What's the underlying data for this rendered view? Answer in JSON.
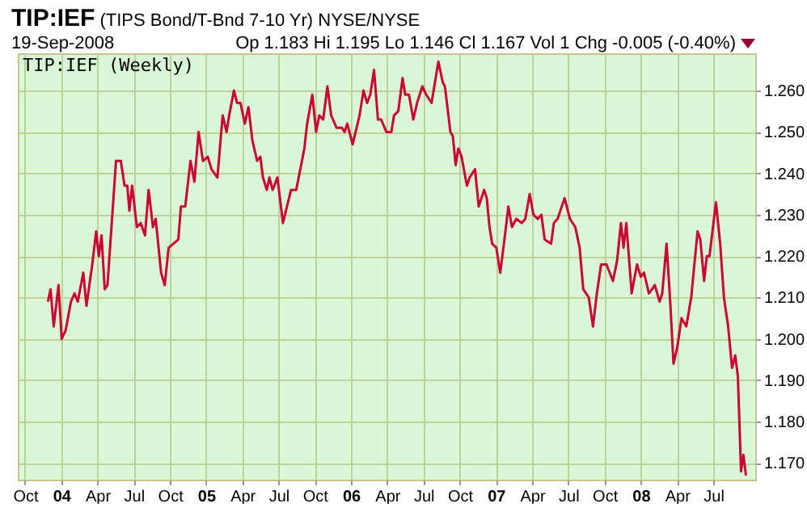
{
  "chart_data": {
    "type": "line",
    "title": "TIP:IEF (TIPS Bond/T-Bnd 7-10 Yr) NYSE/NYSE",
    "annotations": [
      "19-Sep-2008",
      "Op 1.183 Hi 1.195 Lo 1.146 Cl 1.167 Vol 1 Chg -0.005 (-0.40%)",
      "TIP:IEF (Weekly)"
    ],
    "x": [
      2003.908,
      2003.926,
      2003.948,
      2003.981,
      2004.003,
      2004.03,
      2004.067,
      2004.092,
      2004.114,
      2004.152,
      2004.174,
      2004.214,
      2004.241,
      2004.259,
      2004.278,
      2004.3,
      2004.319,
      2004.378,
      2004.411,
      2004.437,
      2004.456,
      2004.47,
      2004.489,
      2004.522,
      2004.548,
      2004.578,
      2004.603,
      2004.633,
      2004.652,
      2004.689,
      2004.714,
      2004.741,
      2004.808,
      2004.826,
      2004.856,
      2004.892,
      2004.919,
      2004.948,
      2004.978,
      2005.011,
      2005.037,
      2005.078,
      2005.114,
      2005.141,
      2005.159,
      2005.192,
      2005.214,
      2005.237,
      2005.267,
      2005.292,
      2005.319,
      2005.352,
      2005.374,
      2005.392,
      2005.419,
      2005.437,
      2005.459,
      2005.492,
      2005.53,
      2005.586,
      2005.622,
      2005.678,
      2005.697,
      2005.733,
      2005.759,
      2005.781,
      2005.808,
      2005.837,
      2005.863,
      2005.9,
      2005.937,
      2005.956,
      2005.974,
      2006.011,
      2006.059,
      2006.086,
      2006.111,
      2006.133,
      2006.159,
      2006.186,
      2006.208,
      2006.244,
      2006.278,
      2006.297,
      2006.326,
      2006.356,
      2006.374,
      2006.4,
      2006.43,
      2006.456,
      2006.492,
      2006.519,
      2006.556,
      2006.603,
      2006.633,
      2006.648,
      2006.686,
      2006.703,
      2006.722,
      2006.741,
      2006.763,
      2006.8,
      2006.819,
      2006.856,
      2006.881,
      2006.919,
      2006.937,
      2006.956,
      2006.974,
      2007.003,
      2007.03,
      2007.059,
      2007.086,
      2007.111,
      2007.141,
      2007.178,
      2007.203,
      2007.233,
      2007.259,
      2007.289,
      2007.314,
      2007.337,
      2007.381,
      2007.4,
      2007.426,
      2007.474,
      2007.511,
      2007.548,
      2007.578,
      2007.603,
      2007.641,
      2007.67,
      2007.697,
      2007.726,
      2007.763,
      2007.808,
      2007.837,
      2007.863,
      2007.881,
      2007.9,
      2007.937,
      2007.974,
      2008.0,
      2008.022,
      2008.056,
      2008.078,
      2008.097,
      2008.13,
      2008.148,
      2008.178,
      2008.203,
      2008.226,
      2008.252,
      2008.281,
      2008.314,
      2008.348,
      2008.392,
      2008.411,
      2008.437,
      2008.456,
      2008.474,
      2008.519,
      2008.548,
      2008.574,
      2008.603,
      2008.63,
      2008.652,
      2008.67,
      2008.692,
      2008.708,
      2008.726
    ],
    "series": [
      {
        "color": "#cc0033",
        "values": [
          1.209,
          1.212,
          1.203,
          1.213,
          1.2,
          1.202,
          1.209,
          1.211,
          1.209,
          1.216,
          1.208,
          1.218,
          1.226,
          1.22,
          1.225,
          1.212,
          1.213,
          1.243,
          1.243,
          1.237,
          1.237,
          1.231,
          1.237,
          1.227,
          1.228,
          1.225,
          1.236,
          1.227,
          1.229,
          1.216,
          1.213,
          1.222,
          1.224,
          1.232,
          1.232,
          1.243,
          1.238,
          1.25,
          1.243,
          1.244,
          1.241,
          1.239,
          1.254,
          1.25,
          1.254,
          1.26,
          1.257,
          1.257,
          1.252,
          1.256,
          1.248,
          1.243,
          1.244,
          1.239,
          1.236,
          1.239,
          1.236,
          1.239,
          1.228,
          1.236,
          1.236,
          1.246,
          1.252,
          1.259,
          1.25,
          1.254,
          1.253,
          1.261,
          1.254,
          1.251,
          1.251,
          1.25,
          1.252,
          1.247,
          1.254,
          1.26,
          1.257,
          1.259,
          1.265,
          1.253,
          1.253,
          1.25,
          1.25,
          1.254,
          1.255,
          1.263,
          1.259,
          1.259,
          1.253,
          1.257,
          1.261,
          1.259,
          1.257,
          1.267,
          1.262,
          1.261,
          1.25,
          1.249,
          1.242,
          1.246,
          1.244,
          1.237,
          1.239,
          1.241,
          1.232,
          1.236,
          1.234,
          1.227,
          1.223,
          1.222,
          1.216,
          1.224,
          1.232,
          1.227,
          1.229,
          1.228,
          1.229,
          1.235,
          1.23,
          1.229,
          1.23,
          1.224,
          1.223,
          1.228,
          1.229,
          1.234,
          1.229,
          1.227,
          1.222,
          1.212,
          1.21,
          1.203,
          1.211,
          1.218,
          1.218,
          1.214,
          1.219,
          1.228,
          1.222,
          1.228,
          1.211,
          1.218,
          1.215,
          1.216,
          1.211,
          1.212,
          1.213,
          1.209,
          1.211,
          1.223,
          1.209,
          1.194,
          1.198,
          1.205,
          1.203,
          1.21,
          1.226,
          1.224,
          1.214,
          1.22,
          1.22,
          1.233,
          1.223,
          1.21,
          1.203,
          1.193,
          1.196,
          1.191,
          1.168,
          1.172,
          1.167
        ]
      }
    ],
    "xlim": [
      2003.7,
      2008.79
    ],
    "xticks": [
      {
        "value": 2003.75,
        "label": "Oct"
      },
      {
        "value": 2004,
        "label": "04"
      },
      {
        "value": 2004.25,
        "label": "Apr"
      },
      {
        "value": 2004.5,
        "label": "Jul"
      },
      {
        "value": 2004.75,
        "label": "Oct"
      },
      {
        "value": 2005,
        "label": "05"
      },
      {
        "value": 2005.25,
        "label": "Apr"
      },
      {
        "value": 2005.5,
        "label": "Jul"
      },
      {
        "value": 2005.75,
        "label": "Oct"
      },
      {
        "value": 2006,
        "label": "06"
      },
      {
        "value": 2006.25,
        "label": "Apr"
      },
      {
        "value": 2006.5,
        "label": "Jul"
      },
      {
        "value": 2006.75,
        "label": "Oct"
      },
      {
        "value": 2007,
        "label": "07"
      },
      {
        "value": 2007.25,
        "label": "Apr"
      },
      {
        "value": 2007.5,
        "label": "Jul"
      },
      {
        "value": 2007.75,
        "label": "Oct"
      },
      {
        "value": 2008,
        "label": "08"
      },
      {
        "value": 2008.25,
        "label": "Apr"
      },
      {
        "value": 2008.5,
        "label": "Jul"
      }
    ],
    "ylim": [
      1.166,
      1.269
    ],
    "yticks": [
      {
        "value": 1.17,
        "label": "1.170"
      },
      {
        "value": 1.18,
        "label": "1.180"
      },
      {
        "value": 1.19,
        "label": "1.190"
      },
      {
        "value": 1.2,
        "label": "1.200"
      },
      {
        "value": 1.21,
        "label": "1.210"
      },
      {
        "value": 1.22,
        "label": "1.220"
      },
      {
        "value": 1.23,
        "label": "1.230"
      },
      {
        "value": 1.24,
        "label": "1.240"
      },
      {
        "value": 1.25,
        "label": "1.250"
      },
      {
        "value": 1.26,
        "label": "1.260"
      }
    ],
    "grid": true
  }
}
